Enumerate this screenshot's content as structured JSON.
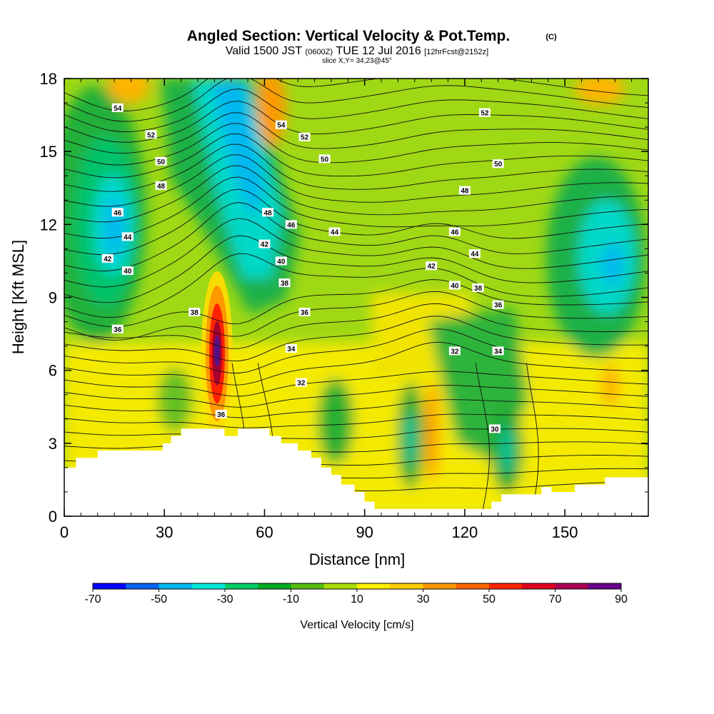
{
  "chart_data": {
    "type": "heatmap",
    "title": "Angled Section: Vertical Velocity & Pot.Temp.",
    "title_mark": "(C)",
    "subtitle_parts": [
      "Valid 1500 JST",
      "(0600Z)",
      "TUE 12 Jul 2016",
      "[12hrFcst@2152z]"
    ],
    "subtitle2": "slice X,Y= 34,23@45°",
    "xlabel": "Distance [nm]",
    "ylabel": "Height [Kft MSL]",
    "xlim": [
      0,
      175
    ],
    "ylim": [
      0,
      18
    ],
    "x_ticks": [
      "0",
      "30",
      "60",
      "90",
      "120",
      "150"
    ],
    "y_ticks": [
      "0",
      "3",
      "6",
      "9",
      "12",
      "15",
      "18"
    ],
    "colorbar": {
      "label": "Vertical Velocity [cm/s]",
      "range": [
        -70,
        90
      ],
      "ticks": [
        "-70",
        "-50",
        "-30",
        "-10",
        "10",
        "30",
        "50",
        "70",
        "90"
      ],
      "colors": [
        "#0000ff",
        "#0a62ee",
        "#00b8f0",
        "#00e8d8",
        "#00cc66",
        "#00aa22",
        "#55bb11",
        "#aadd00",
        "#ffee00",
        "#ffcc00",
        "#ff9900",
        "#ff6600",
        "#ff2200",
        "#dd0022",
        "#aa0055",
        "#660088"
      ]
    },
    "theta_labels": [
      {
        "x": 16,
        "y": 16.8,
        "t": "54"
      },
      {
        "x": 26,
        "y": 15.7,
        "t": "52"
      },
      {
        "x": 29,
        "y": 14.6,
        "t": "50"
      },
      {
        "x": 29,
        "y": 13.6,
        "t": "48"
      },
      {
        "x": 16,
        "y": 12.5,
        "t": "46"
      },
      {
        "x": 19,
        "y": 11.5,
        "t": "44"
      },
      {
        "x": 13,
        "y": 10.6,
        "t": "42"
      },
      {
        "x": 19,
        "y": 10.1,
        "t": "40"
      },
      {
        "x": 39,
        "y": 8.4,
        "t": "38"
      },
      {
        "x": 16,
        "y": 7.7,
        "t": "36"
      },
      {
        "x": 65,
        "y": 16.1,
        "t": "54"
      },
      {
        "x": 72,
        "y": 15.6,
        "t": "52"
      },
      {
        "x": 78,
        "y": 14.7,
        "t": "50"
      },
      {
        "x": 61,
        "y": 12.5,
        "t": "48"
      },
      {
        "x": 68,
        "y": 12.0,
        "t": "46"
      },
      {
        "x": 60,
        "y": 11.2,
        "t": "42"
      },
      {
        "x": 65,
        "y": 10.5,
        "t": "40"
      },
      {
        "x": 66,
        "y": 9.6,
        "t": "38"
      },
      {
        "x": 72,
        "y": 8.4,
        "t": "36"
      },
      {
        "x": 68,
        "y": 6.9,
        "t": "34"
      },
      {
        "x": 71,
        "y": 5.5,
        "t": "32"
      },
      {
        "x": 47,
        "y": 4.2,
        "t": "36"
      },
      {
        "x": 81,
        "y": 11.7,
        "t": "44"
      },
      {
        "x": 126,
        "y": 16.6,
        "t": "52"
      },
      {
        "x": 130,
        "y": 14.5,
        "t": "50"
      },
      {
        "x": 120,
        "y": 13.4,
        "t": "48"
      },
      {
        "x": 117,
        "y": 11.7,
        "t": "46"
      },
      {
        "x": 123,
        "y": 10.8,
        "t": "44"
      },
      {
        "x": 110,
        "y": 10.3,
        "t": "42"
      },
      {
        "x": 117,
        "y": 9.5,
        "t": "40"
      },
      {
        "x": 124,
        "y": 9.4,
        "t": "38"
      },
      {
        "x": 130,
        "y": 8.7,
        "t": "36"
      },
      {
        "x": 117,
        "y": 6.8,
        "t": "32"
      },
      {
        "x": 130,
        "y": 6.8,
        "t": "34"
      },
      {
        "x": 129,
        "y": 3.6,
        "t": "30"
      }
    ],
    "terrain": [
      [
        0,
        2.0
      ],
      [
        3.5,
        2.0
      ],
      [
        3.5,
        2.4
      ],
      [
        10,
        2.4
      ],
      [
        10,
        2.7
      ],
      [
        29.5,
        2.7
      ],
      [
        29.5,
        3.0
      ],
      [
        32,
        3.0
      ],
      [
        32,
        3.3
      ],
      [
        35,
        3.3
      ],
      [
        35,
        3.6
      ],
      [
        48,
        3.6
      ],
      [
        48,
        3.3
      ],
      [
        52,
        3.3
      ],
      [
        52,
        3.6
      ],
      [
        61.5,
        3.6
      ],
      [
        61.5,
        3.3
      ],
      [
        65,
        3.3
      ],
      [
        65,
        3.0
      ],
      [
        70,
        3.0
      ],
      [
        70,
        2.7
      ],
      [
        74,
        2.7
      ],
      [
        74,
        2.4
      ],
      [
        77,
        2.4
      ],
      [
        77,
        2.0
      ],
      [
        80,
        2.0
      ],
      [
        80,
        1.7
      ],
      [
        83,
        1.7
      ],
      [
        83,
        1.3
      ],
      [
        87,
        1.3
      ],
      [
        87,
        1.0
      ],
      [
        90,
        1.0
      ],
      [
        90,
        0.6
      ],
      [
        93,
        0.6
      ],
      [
        93,
        0.3
      ],
      [
        128,
        0.3
      ],
      [
        128,
        0.6
      ],
      [
        131,
        0.6
      ],
      [
        131,
        0.9
      ],
      [
        143,
        0.9
      ],
      [
        143,
        1.2
      ],
      [
        146,
        1.2
      ],
      [
        146,
        1.0
      ],
      [
        153,
        1.0
      ],
      [
        153,
        1.3
      ],
      [
        162,
        1.3
      ],
      [
        162,
        1.6
      ],
      [
        175,
        1.6
      ]
    ],
    "notes": "background: vertical-velocity shading (cm/s); contours: potential temperature labels"
  }
}
